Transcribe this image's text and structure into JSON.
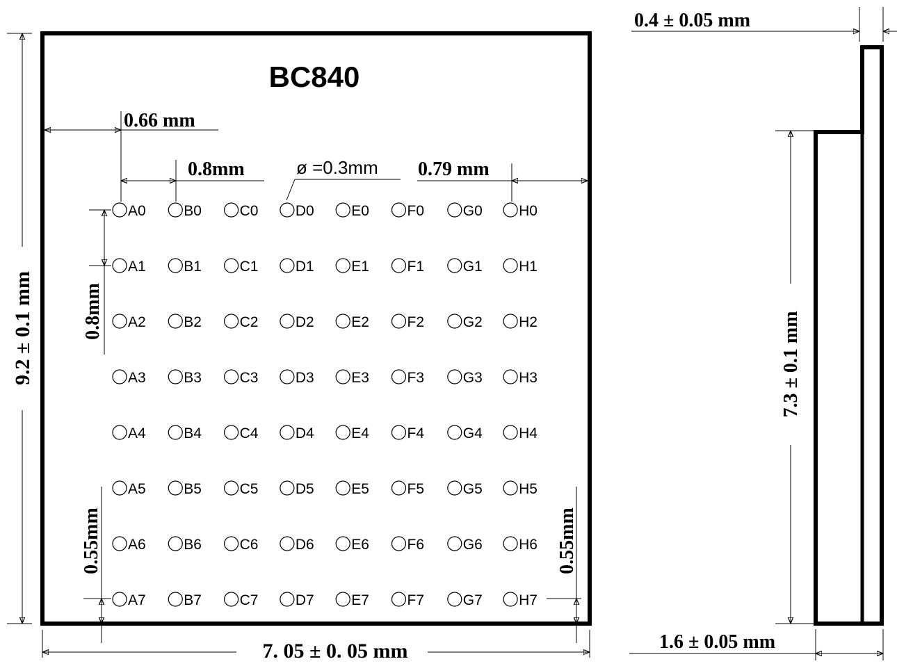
{
  "title": "BC840",
  "rows": [
    "0",
    "1",
    "2",
    "3",
    "4",
    "5",
    "6",
    "7"
  ],
  "cols": [
    "A",
    "B",
    "C",
    "D",
    "E",
    "F",
    "G",
    "H"
  ],
  "dims": {
    "height": "9.2 ± 0.1 mm",
    "width": "7. 05 ± 0. 05  mm",
    "edge_offset": "0.66 mm",
    "pitch_h": "0.8mm",
    "ball_diameter": "ø =0.3mm",
    "right_offset": "0.79 mm",
    "pitch_v": "0.8mm",
    "bottom_left": "0.55mm",
    "bottom_right": "0.55mm",
    "side_thickness": "0.4 ± 0.05 mm",
    "side_height": "7.3 ± 0.1 mm",
    "side_depth": "1.6 ± 0.05 mm"
  }
}
